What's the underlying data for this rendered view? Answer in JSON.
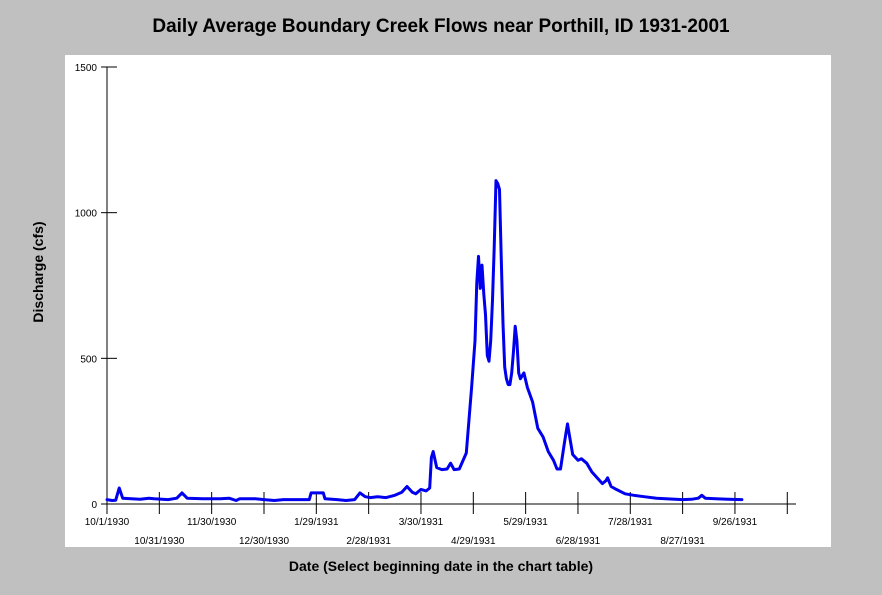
{
  "chart_data": {
    "type": "line",
    "title": "Daily Average Boundary Creek Flows near Porthill, ID 1931-2001",
    "xlabel": "Date (Select beginning date in the chart table)",
    "ylabel": "Discharge (cfs)",
    "ylim": [
      0,
      1500
    ],
    "yticks": [
      0,
      500,
      1000,
      1500
    ],
    "xlim": [
      "1930-10-01",
      "1931-10-31"
    ],
    "xticks_top_row": [
      "10/1/1930",
      "11/30/1930",
      "1/29/1931",
      "3/30/1931",
      "5/29/1931",
      "7/28/1931",
      "9/26/1931"
    ],
    "xticks_bottom_row": [
      "10/31/1930",
      "12/30/1930",
      "2/28/1931",
      "4/29/1931",
      "6/28/1931",
      "8/27/1931"
    ],
    "xtick_dates": [
      "1930-10-01",
      "1930-10-31",
      "1930-11-30",
      "1930-12-30",
      "1931-01-29",
      "1931-02-28",
      "1931-03-30",
      "1931-04-29",
      "1931-05-29",
      "1931-06-28",
      "1931-07-28",
      "1931-08-27",
      "1931-09-26",
      "1931-10-26"
    ],
    "grid": false,
    "series": [
      {
        "color": "#0000ee",
        "points": [
          [
            "1930-10-01",
            15
          ],
          [
            "1930-10-04",
            12
          ],
          [
            "1930-10-06",
            13
          ],
          [
            "1930-10-08",
            55
          ],
          [
            "1930-10-10",
            20
          ],
          [
            "1930-10-15",
            18
          ],
          [
            "1930-10-20",
            16
          ],
          [
            "1930-10-25",
            20
          ],
          [
            "1930-10-28",
            18
          ],
          [
            "1930-11-05",
            15
          ],
          [
            "1930-11-10",
            20
          ],
          [
            "1930-11-13",
            38
          ],
          [
            "1930-11-16",
            20
          ],
          [
            "1930-11-25",
            18
          ],
          [
            "1930-12-05",
            18
          ],
          [
            "1930-12-10",
            20
          ],
          [
            "1930-12-14",
            12
          ],
          [
            "1930-12-16",
            18
          ],
          [
            "1930-12-25",
            18
          ],
          [
            "1930-12-30",
            15
          ],
          [
            "1931-01-05",
            12
          ],
          [
            "1931-01-10",
            15
          ],
          [
            "1931-01-20",
            15
          ],
          [
            "1931-01-25",
            15
          ],
          [
            "1931-01-26",
            38
          ],
          [
            "1931-02-02",
            38
          ],
          [
            "1931-02-03",
            18
          ],
          [
            "1931-02-10",
            15
          ],
          [
            "1931-02-15",
            12
          ],
          [
            "1931-02-20",
            15
          ],
          [
            "1931-02-23",
            38
          ],
          [
            "1931-02-26",
            25
          ],
          [
            "1931-03-01",
            22
          ],
          [
            "1931-03-05",
            25
          ],
          [
            "1931-03-10",
            22
          ],
          [
            "1931-03-15",
            30
          ],
          [
            "1931-03-19",
            40
          ],
          [
            "1931-03-22",
            60
          ],
          [
            "1931-03-25",
            40
          ],
          [
            "1931-03-27",
            35
          ],
          [
            "1931-03-30",
            50
          ],
          [
            "1931-04-02",
            45
          ],
          [
            "1931-04-04",
            55
          ],
          [
            "1931-04_05",
            160
          ],
          [
            "1931-04-06",
            180
          ],
          [
            "1931-04-08",
            125
          ],
          [
            "1931-04-11",
            118
          ],
          [
            "1931-04-14",
            120
          ],
          [
            "1931-04-16",
            140
          ],
          [
            "1931-04-18",
            118
          ],
          [
            "1931-04-21",
            120
          ],
          [
            "1931-04-25",
            175
          ],
          [
            "1931-04-28",
            400
          ],
          [
            "1931-04-30",
            560
          ],
          [
            "1931-05-01",
            760
          ],
          [
            "1931-05-02",
            850
          ],
          [
            "1931-05-03",
            740
          ],
          [
            "1931-05-04",
            820
          ],
          [
            "1931-05-05",
            720
          ],
          [
            "1931-05-06",
            650
          ],
          [
            "1931-05-07",
            510
          ],
          [
            "1931-05-08",
            490
          ],
          [
            "1931-05-09",
            560
          ],
          [
            "1931-05-10",
            700
          ],
          [
            "1931-05-11",
            880
          ],
          [
            "1931-05-12",
            1110
          ],
          [
            "1931-05-13",
            1100
          ],
          [
            "1931-05-14",
            1080
          ],
          [
            "1931-05-15",
            850
          ],
          [
            "1931-05-16",
            620
          ],
          [
            "1931-05-17",
            470
          ],
          [
            "1931-05-18",
            430
          ],
          [
            "1931-05-19",
            410
          ],
          [
            "1931-05-20",
            410
          ],
          [
            "1931-05-21",
            450
          ],
          [
            "1931-05-22",
            520
          ],
          [
            "1931-05-23",
            610
          ],
          [
            "1931-05-24",
            560
          ],
          [
            "1931-05-25",
            450
          ],
          [
            "1931-05-26",
            430
          ],
          [
            "1931-05-28",
            450
          ],
          [
            "1931-05-30",
            400
          ],
          [
            "1931-06-02",
            350
          ],
          [
            "1931-06-05",
            260
          ],
          [
            "1931-06-08",
            230
          ],
          [
            "1931-06-11",
            180
          ],
          [
            "1931-06-14",
            150
          ],
          [
            "1931-06-16",
            120
          ],
          [
            "1931-06-18",
            120
          ],
          [
            "1931-06-20",
            200
          ],
          [
            "1931-06-21",
            240
          ],
          [
            "1931-06-22",
            275
          ],
          [
            "1931-06-23",
            240
          ],
          [
            "1931-06-25",
            170
          ],
          [
            "1931-06-28",
            150
          ],
          [
            "1931-06-30",
            155
          ],
          [
            "1931-07-03",
            140
          ],
          [
            "1931-07-06",
            110
          ],
          [
            "1931-07-09",
            90
          ],
          [
            "1931-07-12",
            70
          ],
          [
            "1931-07-14",
            80
          ],
          [
            "1931-07-15",
            90
          ],
          [
            "1931-07-17",
            60
          ],
          [
            "1931-07-20",
            50
          ],
          [
            "1931-07-25",
            35
          ],
          [
            "1931-07-30",
            30
          ],
          [
            "1931-08-05",
            25
          ],
          [
            "1931-08-12",
            20
          ],
          [
            "1931-08-20",
            17
          ],
          [
            "1931-08-27",
            15
          ],
          [
            "1931-09-01",
            16
          ],
          [
            "1931-09-05",
            20
          ],
          [
            "1931-09-07",
            30
          ],
          [
            "1931-09-09",
            20
          ],
          [
            "1931-09-15",
            18
          ],
          [
            "1931-09-22",
            16
          ],
          [
            "1931-09-30",
            15
          ]
        ]
      }
    ]
  }
}
